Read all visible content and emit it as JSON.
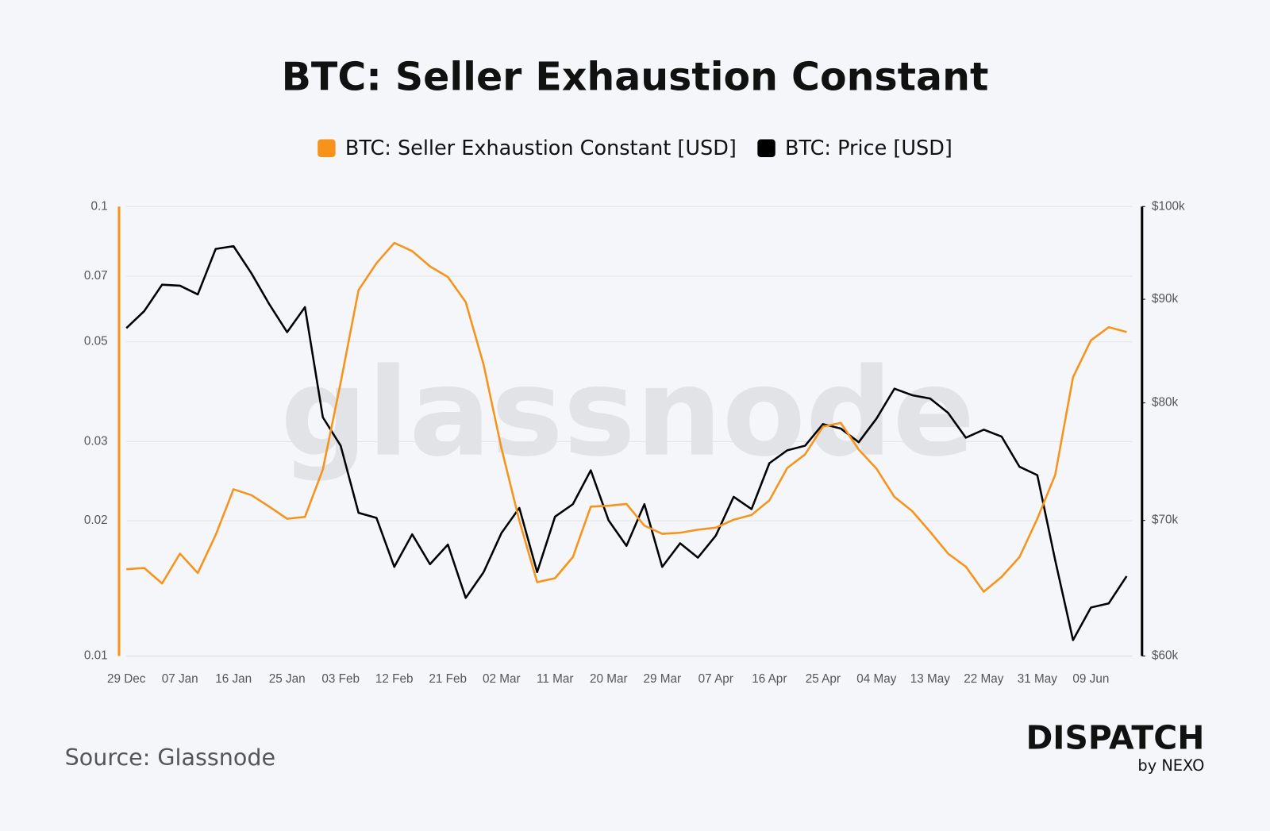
{
  "chart_data": {
    "type": "line",
    "title": "BTC: Seller Exhaustion Constant",
    "watermark": "glassnode",
    "categories": [
      "29 Dec",
      null,
      null,
      "07 Jan",
      null,
      null,
      "16 Jan",
      null,
      null,
      "25 Jan",
      null,
      null,
      "03 Feb",
      null,
      null,
      "12 Feb",
      null,
      null,
      "21 Feb",
      null,
      null,
      "02 Mar",
      null,
      null,
      "11 Mar",
      null,
      null,
      "20 Mar",
      null,
      null,
      "29 Mar",
      null,
      null,
      "07 Apr",
      null,
      null,
      "16 Apr",
      null,
      null,
      "25 Apr",
      null,
      null,
      "04 May",
      null,
      null,
      "13 May",
      null,
      null,
      "22 May",
      null,
      null,
      "31 May",
      null,
      null,
      "09 Jun",
      null,
      null
    ],
    "series": [
      {
        "name": "BTC: Seller Exhaustion Constant [USD]",
        "color": "#f7931a",
        "axis": "y",
        "values": [
          0.0156,
          0.0157,
          0.0145,
          0.0169,
          0.0153,
          0.0186,
          0.0235,
          0.0228,
          0.0215,
          0.0202,
          0.0204,
          0.026,
          0.0406,
          0.0652,
          0.0748,
          0.083,
          0.0796,
          0.0736,
          0.0697,
          0.0613,
          0.0445,
          0.029,
          0.02,
          0.0146,
          0.0149,
          0.0166,
          0.0215,
          0.0216,
          0.0218,
          0.0195,
          0.0187,
          0.0188,
          0.0191,
          0.0193,
          0.0201,
          0.0206,
          0.0222,
          0.0262,
          0.0281,
          0.0324,
          0.033,
          0.0288,
          0.0261,
          0.0226,
          0.021,
          0.0189,
          0.0169,
          0.0158,
          0.0139,
          0.015,
          0.0166,
          0.0202,
          0.0253,
          0.0417,
          0.0504,
          0.0539,
          0.0526
        ]
      },
      {
        "name": "BTC: Price [USD]",
        "color": "#000000",
        "axis": "y2",
        "values": [
          87100,
          88800,
          91500,
          91400,
          90500,
          95300,
          95600,
          92700,
          89500,
          86700,
          89200,
          78700,
          76200,
          70600,
          70200,
          66400,
          68900,
          66600,
          68100,
          64100,
          66000,
          69000,
          71000,
          66000,
          70300,
          71300,
          74100,
          70000,
          68000,
          71300,
          66400,
          68200,
          67100,
          68800,
          71900,
          70900,
          74700,
          75800,
          76200,
          78100,
          77700,
          76500,
          78600,
          81300,
          80700,
          80400,
          79100,
          76900,
          77600,
          77000,
          74400,
          73700,
          66900,
          61100,
          63400,
          63700,
          65700
        ]
      }
    ],
    "ylim": [
      0.01,
      0.1
    ],
    "yticks": [
      0.01,
      0.02,
      0.03,
      0.05,
      0.07,
      0.1
    ],
    "log_scale": true,
    "y2lim": [
      60000,
      100000
    ],
    "y2ticks": [
      {
        "value": 60000,
        "label": "$60k"
      },
      {
        "value": 70000,
        "label": "$70k"
      },
      {
        "value": 80000,
        "label": "$80k"
      },
      {
        "value": 90000,
        "label": "$90k"
      },
      {
        "value": 100000,
        "label": "$100k"
      }
    ],
    "y2_log_scale": true,
    "grid": true,
    "legend": "top"
  },
  "footer": {
    "source": "Source: Glassnode",
    "brand": "DISPATCH",
    "brand_sub": "by NEXO"
  }
}
